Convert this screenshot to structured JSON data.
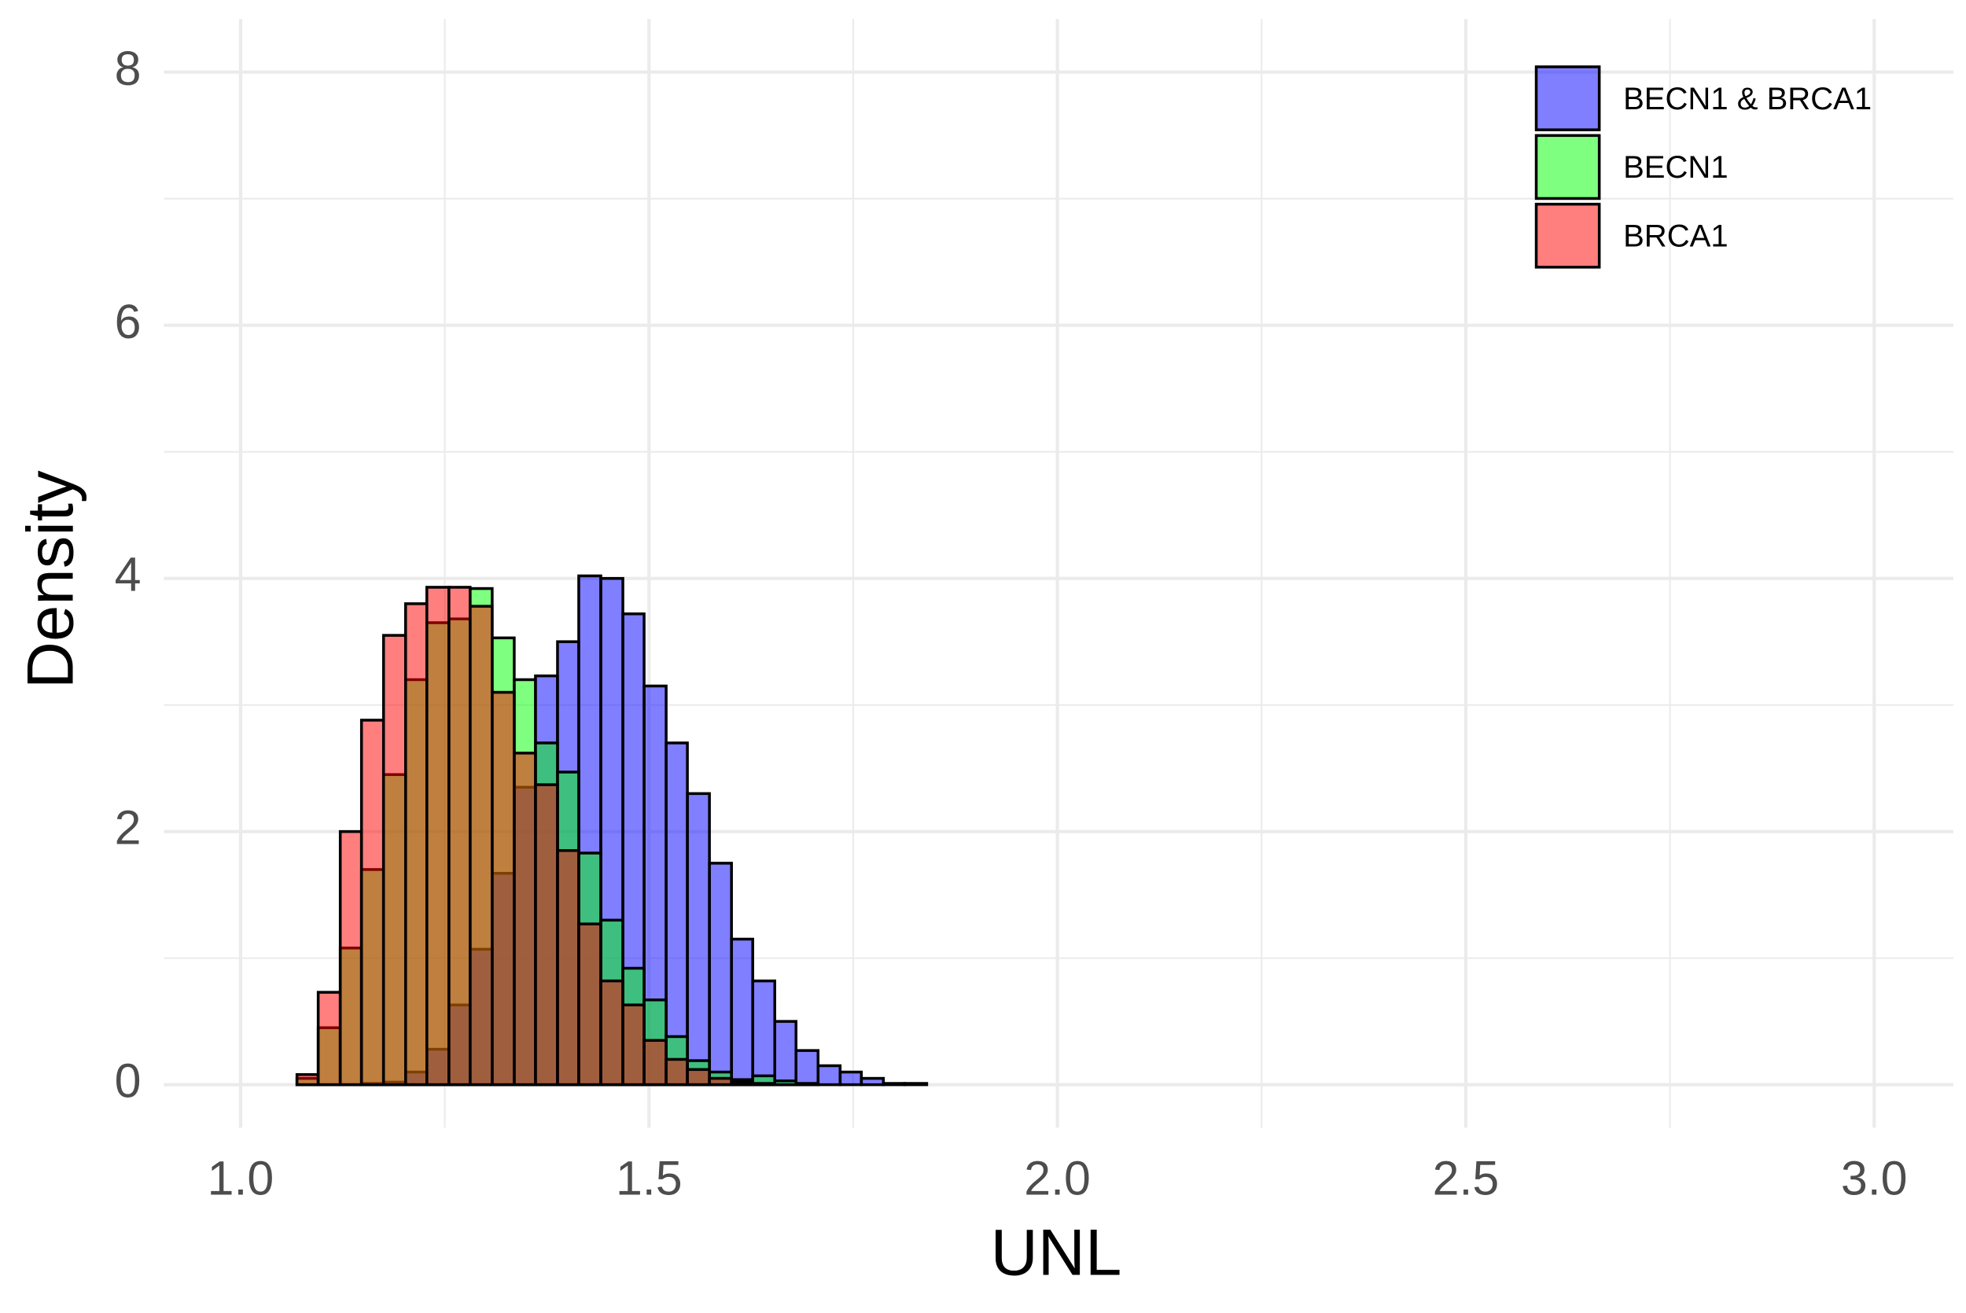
{
  "chart_data": {
    "type": "histogram",
    "x_label": "UNL",
    "y_label": "Density",
    "bins": [
      1.042,
      1.069,
      1.095,
      1.122,
      1.148,
      1.175,
      1.202,
      1.228,
      1.255,
      1.281,
      1.308,
      1.335,
      1.361,
      1.388,
      1.414,
      1.441,
      1.468,
      1.494,
      1.521,
      1.547,
      1.574,
      1.601,
      1.627,
      1.654,
      1.68,
      1.707,
      1.734,
      1.76,
      1.787,
      1.813,
      1.84
    ],
    "series": [
      {
        "name": "BECN1 & BRCA1",
        "color": "#0000ff",
        "values": [
          0,
          0,
          0,
          0,
          0.01,
          0.02,
          0.1,
          0.28,
          0.63,
          1.07,
          1.67,
          2.35,
          3.23,
          3.5,
          4.02,
          4.0,
          3.72,
          3.15,
          2.7,
          2.3,
          1.75,
          1.15,
          0.82,
          0.5,
          0.27,
          0.15,
          0.1,
          0.05,
          0.01,
          0.01
        ]
      },
      {
        "name": "BECN1",
        "color": "#00ff00",
        "values": [
          0,
          0.05,
          0.45,
          1.08,
          1.7,
          2.45,
          3.2,
          3.65,
          3.68,
          3.92,
          3.53,
          3.2,
          2.7,
          2.47,
          1.83,
          1.3,
          0.92,
          0.67,
          0.38,
          0.19,
          0.1,
          0.04,
          0.07,
          0.03,
          0.01,
          0,
          0,
          0,
          0,
          0
        ]
      },
      {
        "name": "BRCA1",
        "color": "#ff0000",
        "values": [
          0,
          0.08,
          0.73,
          2.0,
          2.88,
          3.55,
          3.8,
          3.93,
          3.93,
          3.78,
          3.1,
          2.62,
          2.37,
          1.85,
          1.27,
          0.82,
          0.63,
          0.35,
          0.2,
          0.12,
          0.05,
          0.02,
          0.01,
          0,
          0,
          0,
          0,
          0,
          0,
          0
        ]
      }
    ],
    "fill_opacity": 0.5,
    "xlim": [
      0.906,
      3.097
    ],
    "ylim": [
      -0.34,
      8.42
    ],
    "xticks": [
      {
        "value": 1,
        "label": "1.0"
      },
      1.5,
      {
        "value": 2,
        "label": "2.0"
      },
      2.5,
      {
        "value": 3,
        "label": "3.0"
      }
    ],
    "yticks": [
      0,
      2,
      4,
      6,
      8
    ],
    "x_minor_grid": [
      1.25,
      1.75,
      2.25,
      2.75
    ],
    "y_minor_grid": [
      1,
      3,
      5,
      7
    ],
    "grid": true,
    "legend_position": "top-right"
  }
}
